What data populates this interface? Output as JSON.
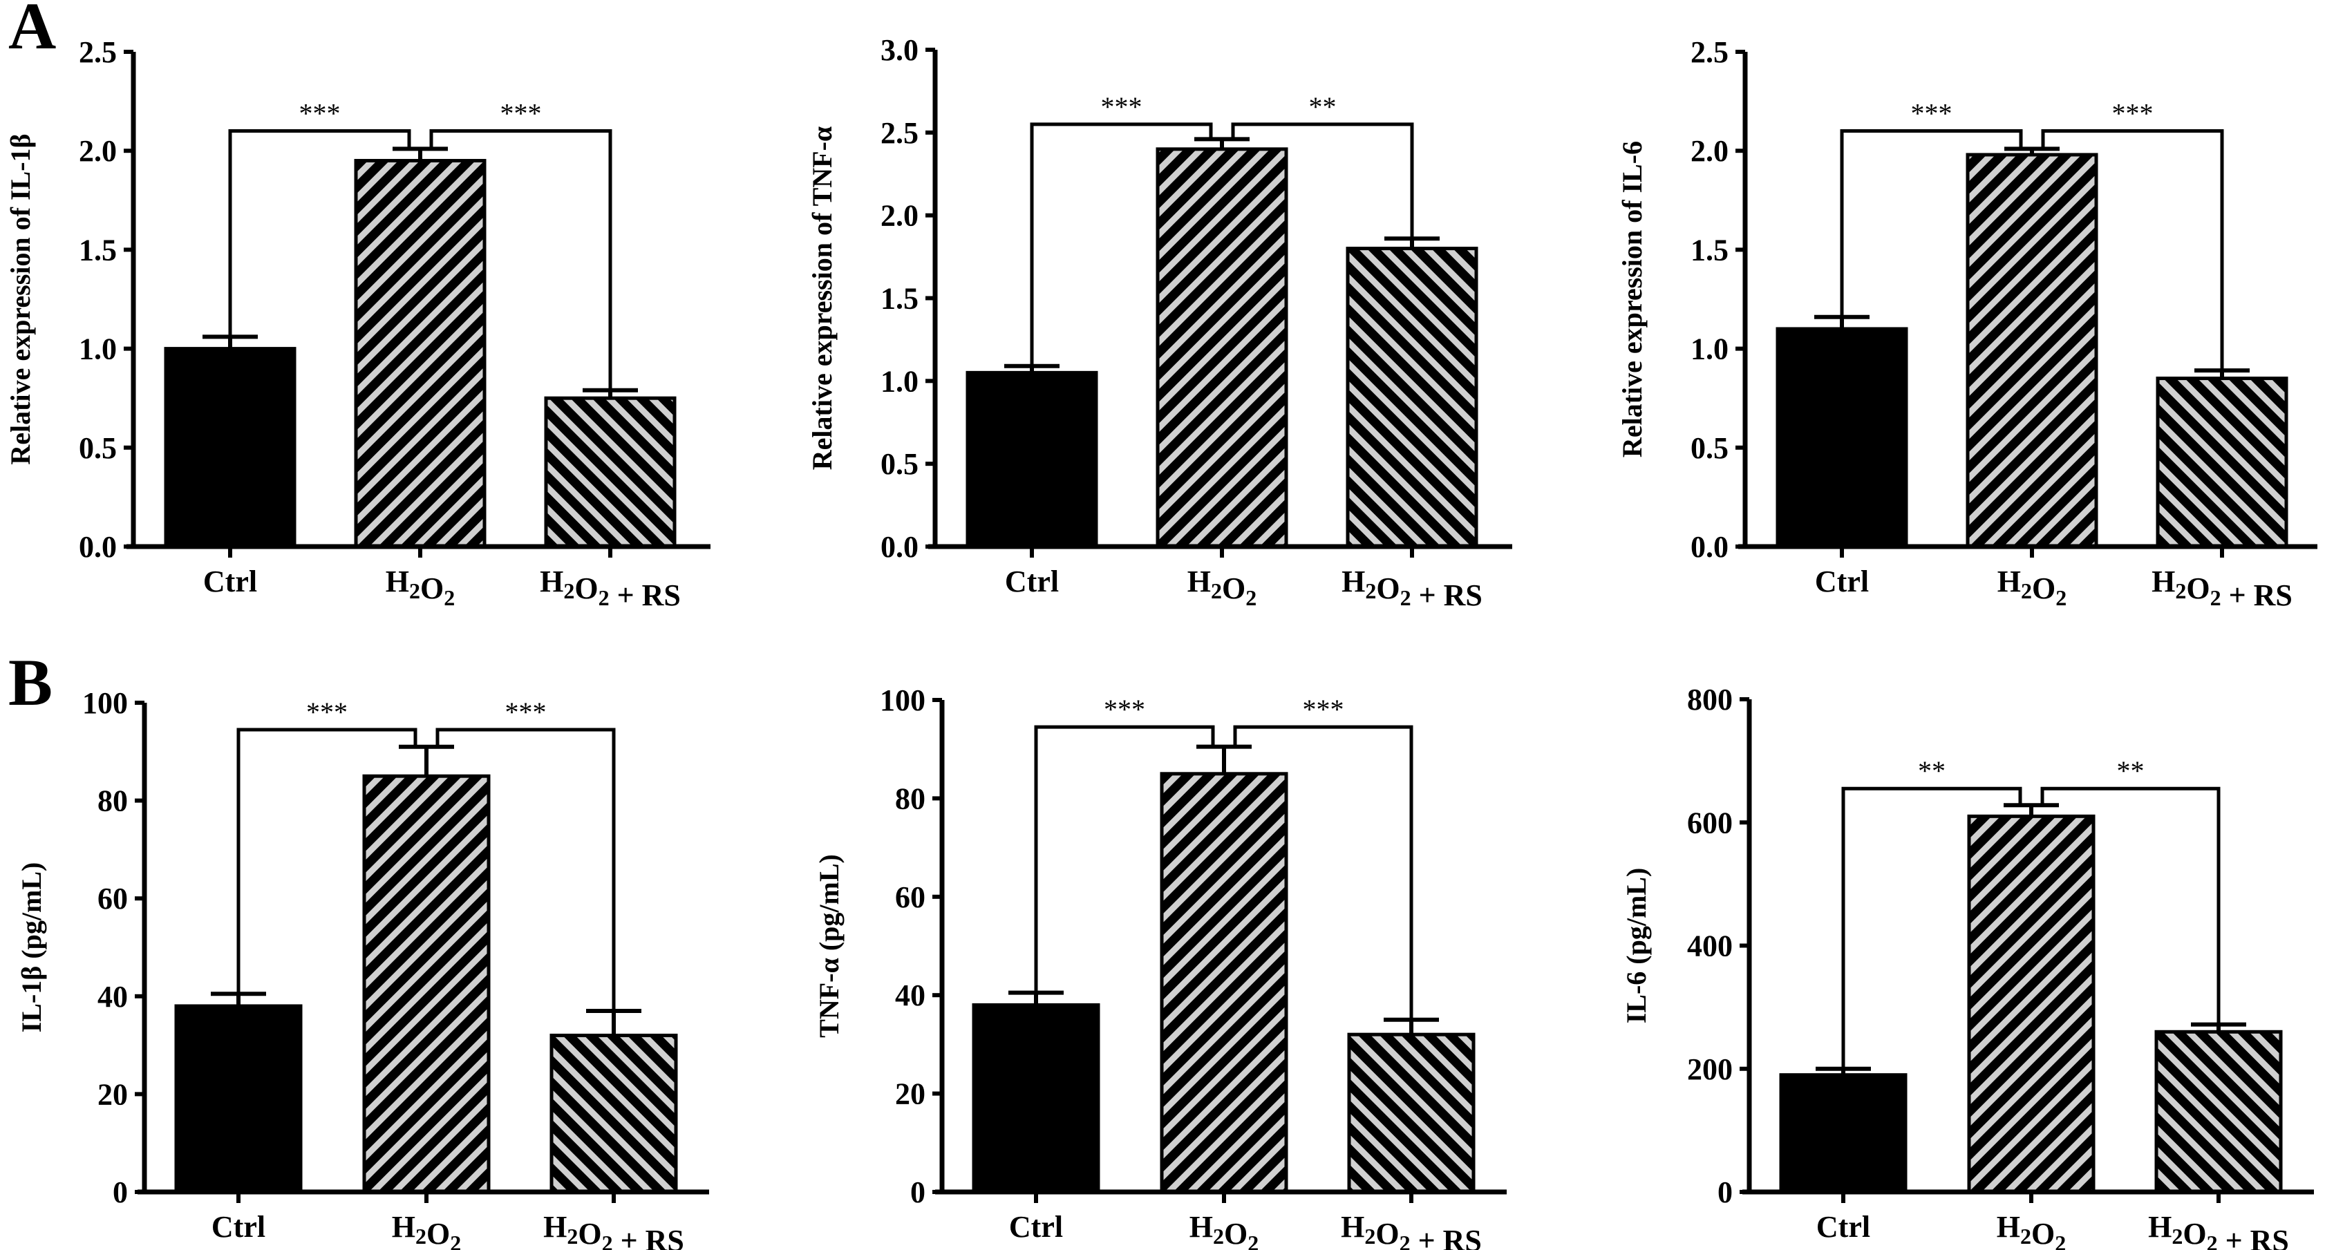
{
  "colors": {
    "ctrl_fill": "#000000",
    "hatch_dark": "#000000",
    "hatch_light": "#d0d0d0",
    "axis": "#000000"
  },
  "chart_data": [
    {
      "panel": "A",
      "type": "bar",
      "title": "",
      "xlabel": "",
      "ylabel": "Relative expression of IL-1β",
      "categories": [
        "Ctrl",
        "H2O2",
        "H2O2 + RS"
      ],
      "values": [
        1.0,
        1.95,
        0.75
      ],
      "errors": [
        0.06,
        0.06,
        0.04
      ],
      "ylim": [
        0,
        2.5
      ],
      "yticks": [
        "0.0",
        "0.5",
        "1.0",
        "1.5",
        "2.0",
        "2.5"
      ],
      "ytick_values": [
        0,
        0.5,
        1.0,
        1.5,
        2.0,
        2.5
      ],
      "significance": {
        "level": 2.1,
        "left": "***",
        "right": "***"
      },
      "grid": false,
      "legend": "none"
    },
    {
      "panel": "",
      "type": "bar",
      "title": "",
      "xlabel": "",
      "ylabel": "Relative expression of TNF-α",
      "categories": [
        "Ctrl",
        "H2O2",
        "H2O2 + RS"
      ],
      "values": [
        1.05,
        2.4,
        1.8
      ],
      "errors": [
        0.04,
        0.06,
        0.06
      ],
      "ylim": [
        0,
        3.0
      ],
      "yticks": [
        "0.0",
        "0.5",
        "1.0",
        "1.5",
        "2.0",
        "2.5",
        "3.0"
      ],
      "ytick_values": [
        0,
        0.5,
        1.0,
        1.5,
        2.0,
        2.5,
        3.0
      ],
      "significance": {
        "level": 2.55,
        "left": "***",
        "right": "**"
      },
      "grid": false,
      "legend": "none"
    },
    {
      "panel": "",
      "type": "bar",
      "title": "",
      "xlabel": "",
      "ylabel": "Relative expression of IL-6",
      "categories": [
        "Ctrl",
        "H2O2",
        "H2O2 + RS"
      ],
      "values": [
        1.1,
        1.98,
        0.85
      ],
      "errors": [
        0.06,
        0.03,
        0.04
      ],
      "ylim": [
        0,
        2.5
      ],
      "yticks": [
        "0.0",
        "0.5",
        "1.0",
        "1.5",
        "2.0",
        "2.5"
      ],
      "ytick_values": [
        0,
        0.5,
        1.0,
        1.5,
        2.0,
        2.5
      ],
      "significance": {
        "level": 2.1,
        "left": "***",
        "right": "***"
      },
      "grid": false,
      "legend": "none"
    },
    {
      "panel": "B",
      "type": "bar",
      "title": "",
      "xlabel": "",
      "ylabel": "IL-1β (pg/mL)",
      "categories": [
        "Ctrl",
        "H2O2",
        "H2O2 + RS"
      ],
      "values": [
        38,
        85,
        32
      ],
      "errors": [
        2.5,
        6,
        5
      ],
      "ylim": [
        0,
        100
      ],
      "yticks": [
        "0",
        "20",
        "40",
        "60",
        "80",
        "100"
      ],
      "ytick_values": [
        0,
        20,
        40,
        60,
        80,
        100
      ],
      "significance": {
        "level": 94.5,
        "left": "***",
        "right": "***"
      },
      "grid": false,
      "legend": "none"
    },
    {
      "panel": "",
      "type": "bar",
      "title": "",
      "xlabel": "",
      "ylabel": "TNF-α (pg/mL)",
      "categories": [
        "Ctrl",
        "H2O2",
        "H2O2 + RS"
      ],
      "values": [
        38,
        85,
        32
      ],
      "errors": [
        2.5,
        5.5,
        3
      ],
      "ylim": [
        0,
        100
      ],
      "yticks": [
        "0",
        "20",
        "40",
        "60",
        "80",
        "100"
      ],
      "ytick_values": [
        0,
        20,
        40,
        60,
        80,
        100
      ],
      "significance": {
        "level": 94.5,
        "left": "***",
        "right": "***"
      },
      "grid": false,
      "legend": "none"
    },
    {
      "panel": "",
      "type": "bar",
      "title": "",
      "xlabel": "",
      "ylabel": "IL-6 (pg/mL)",
      "categories": [
        "Ctrl",
        "H2O2",
        "H2O2 + RS"
      ],
      "values": [
        190,
        610,
        260
      ],
      "errors": [
        10,
        18,
        12
      ],
      "ylim": [
        0,
        800
      ],
      "yticks": [
        "0",
        "200",
        "400",
        "600",
        "800"
      ],
      "ytick_values": [
        0,
        200,
        400,
        600,
        800
      ],
      "significance": {
        "level": 655,
        "left": "**",
        "right": "**"
      },
      "grid": false,
      "legend": "none"
    }
  ]
}
